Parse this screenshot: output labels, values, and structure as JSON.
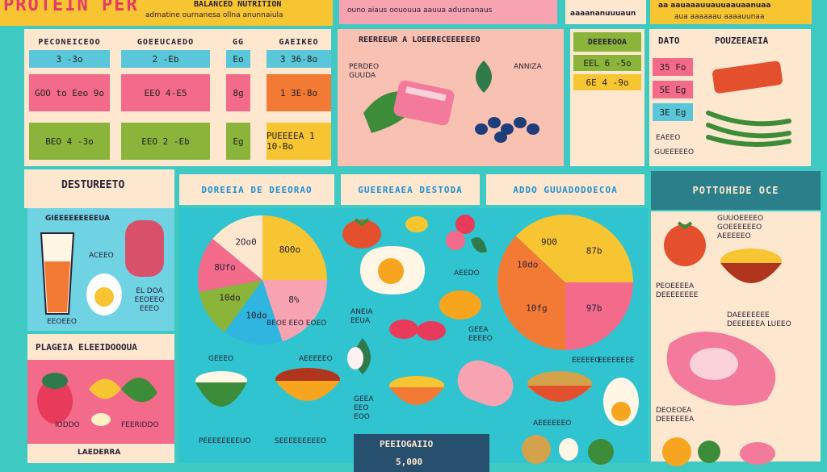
{
  "colors": {
    "teal": "#3fc9c3",
    "cream": "#fde7cf",
    "pink": "#f46a8b",
    "yellow": "#f7c531",
    "orange": "#f37a35",
    "green": "#8ab43a",
    "blue": "#2eb6e0",
    "lightPink": "#f8a3b2"
  },
  "top": {
    "title": "PROTEIN PER",
    "title_right": "BALANCED NUTRITION",
    "subtitle": "admatine ournanesa ollna anunnaiula",
    "pink_note": "ouno aiaus oououua aauua adusnanaus",
    "peach_heading": "aaaananuuuaun",
    "right_heading": "aa aauaaauuauuaauaanuaa",
    "right_sub": "aua aaaaaau aaaauunaa"
  },
  "grid": {
    "headers": [
      "PECONEICEOO",
      "GOEEUCAEDO",
      "GG",
      "GAEIKEO"
    ],
    "rows": [
      [
        "3 -3o",
        "2 -Eb",
        "Eo",
        "3 36-8o"
      ],
      [
        "GOO to  Eeo 9o",
        "EEO 4-E5",
        "8g",
        "1 3E-8o"
      ],
      [
        "BEO 4 -3o",
        "EEO 2 -Eb",
        "Eg",
        "PUEEEEA 1 10-Bo"
      ]
    ]
  },
  "foods_top": {
    "title": "REEREEUR A LOEERECEEEEEEO",
    "label1": "PERDEO GUUDA",
    "label2": "ANNIZA"
  },
  "data_table": {
    "header": "DEEEEOOA",
    "rows": [
      "EEL  6  -5o",
      "6E  4  -9o",
      "",
      "",
      ""
    ]
  },
  "right_table": {
    "header1": "DATO",
    "header2": "POUZEEAEIA",
    "rows": [
      "35 Fo",
      "5E Eg",
      "3E Eg",
      "EAEEO",
      "GUEEEEEO"
    ]
  },
  "banners": {
    "left": "DESTUREETO",
    "b1": "DOREEIA DE DEEORAO",
    "b2": "GUEEREAEA DESTODA",
    "b3": "ADDO GUUADODOECOA",
    "right": "POTTOHEDE OCE"
  },
  "left_panel": {
    "title": "GIEEEEEEEEEUA",
    "label1": "ACEEO",
    "label2": "EL DOA EEOEEO EEEO",
    "label3": "EEOEEO"
  },
  "left_bottom": {
    "title": "PLAGEIA ELEEIDOOOUA",
    "label1": "IODDO",
    "label2": "FEERIDDO",
    "footer": "LAEDERRA"
  },
  "pie1": {
    "slices": [
      {
        "label": "8O0o",
        "value": 25
      },
      {
        "label": "8%",
        "value": 20
      },
      {
        "label": "10do",
        "value": 15
      },
      {
        "label": "10do",
        "value": 12
      },
      {
        "label": "8Ufo",
        "value": 14
      },
      {
        "label": "2Oo0",
        "value": 14
      }
    ]
  },
  "pie2": {
    "slices": [
      {
        "label": "87b",
        "value": 25
      },
      {
        "label": "97b",
        "value": 25
      },
      {
        "label": "10fg",
        "value": 25
      },
      {
        "label": "10do",
        "value": 12
      },
      {
        "label": "9O0",
        "value": 13
      }
    ]
  },
  "mid_labels": {
    "a": "ANEIA EEUA",
    "b": "AEEDO",
    "c": "GEEA EEEEO",
    "d": "BEOE EEO EOEO",
    "e": "GEEEO",
    "f": "AEEEEEO",
    "g": "EEEEEO",
    "h": "AEEEEEEO"
  },
  "bottom": {
    "label_left": "PEEEEEEEEUO",
    "label_mid": "SEEEEEEEEEO",
    "label3": "GEEA EEO EOO",
    "box_title": "PEEIOGAIIO",
    "box_value": "5,000",
    "label_right": "EEEEEEEE"
  },
  "right_panel": {
    "label1": "GUUOEEEEO GOEEEEEEO AEEEEEO",
    "label2": "PEOEEEEA DEEEEEEEE",
    "label3": "DAEEEEEEE DEEEEEEA LUEEO",
    "label4": "DEOEOEA DEEEEEEA"
  }
}
